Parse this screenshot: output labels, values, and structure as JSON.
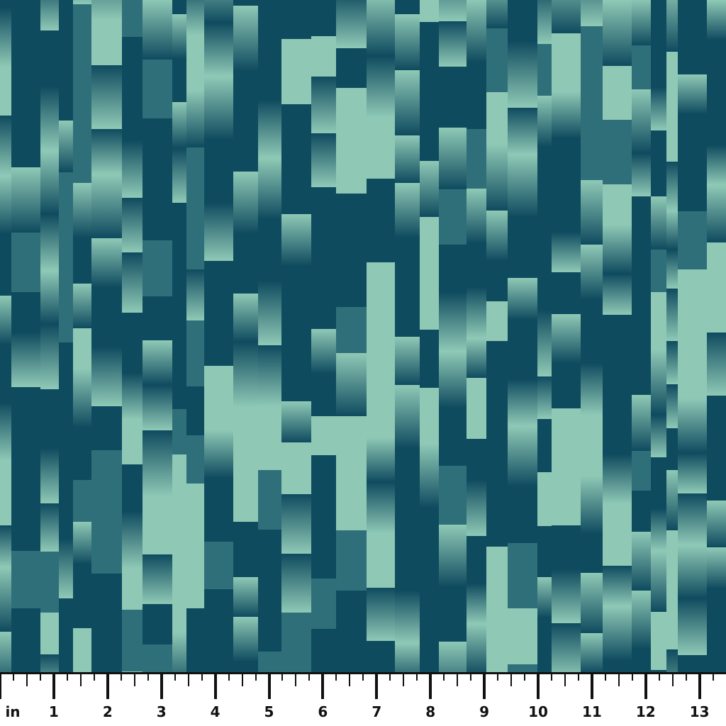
{
  "image": {
    "subject": "fabric swatch",
    "colors": {
      "dark": "#0f4b5f",
      "mid": "#2f6f7a",
      "light": "#8fc9b6"
    }
  },
  "ruler": {
    "unit_label": "in",
    "labels": [
      "1",
      "2",
      "3",
      "4",
      "5",
      "6",
      "7",
      "8",
      "9",
      "10",
      "11",
      "12",
      "13"
    ],
    "subdivisions": 4
  }
}
